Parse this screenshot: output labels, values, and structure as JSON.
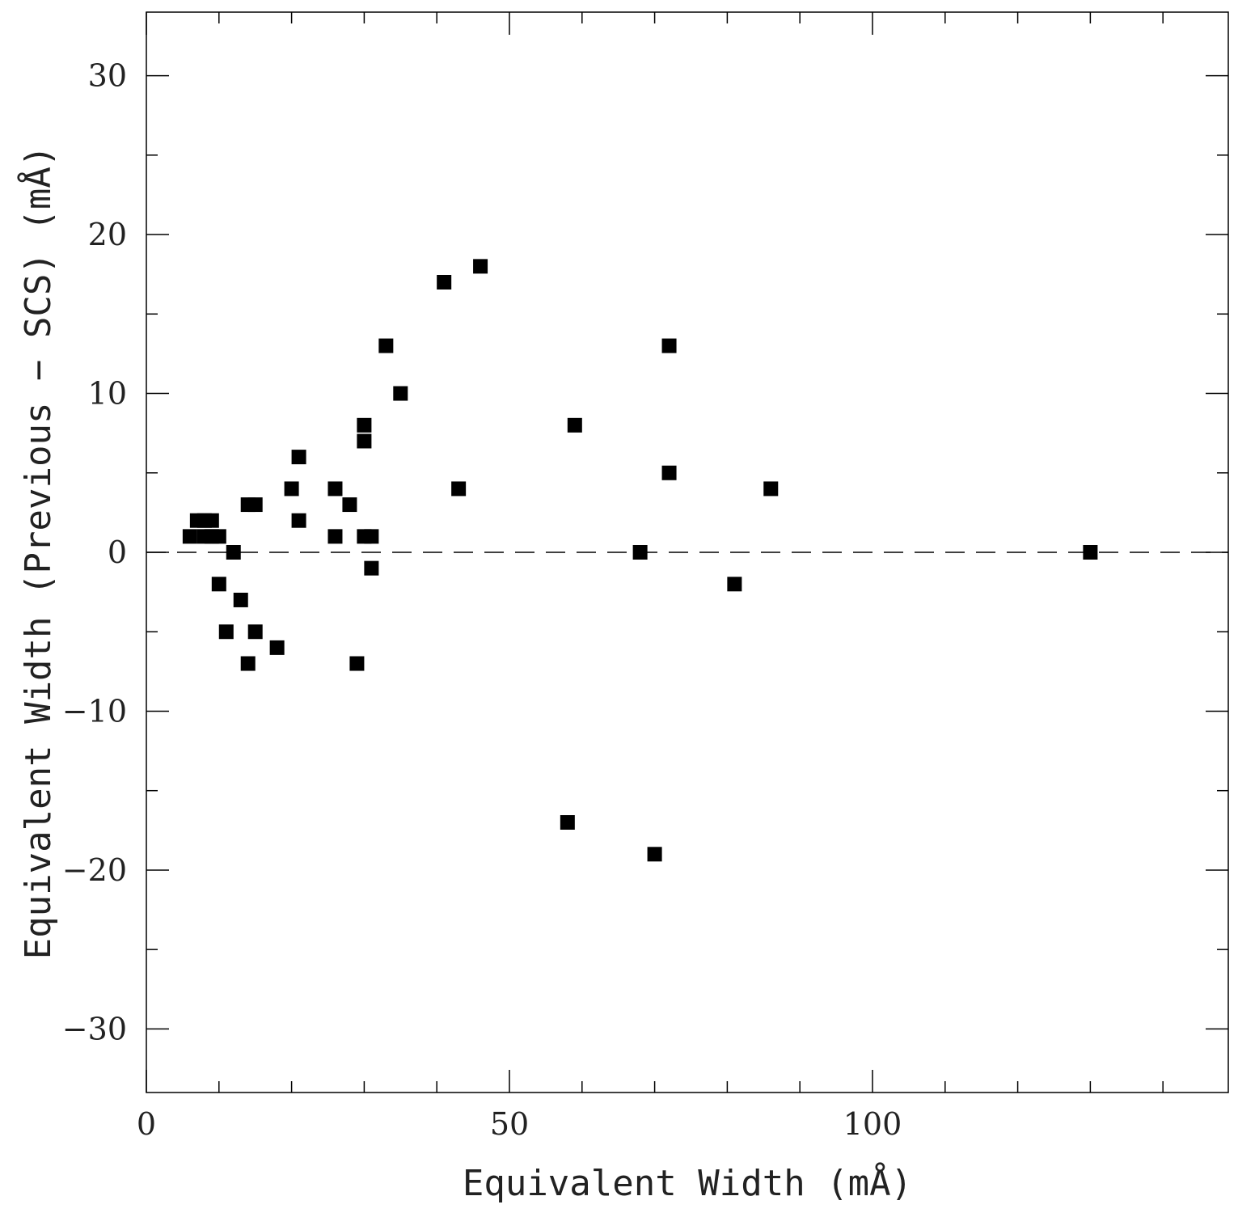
{
  "chart_data": {
    "type": "scatter",
    "title": "",
    "xlabel": "Equivalent Width (mÅ)",
    "ylabel": "Equivalent Width (Previous − SCS) (mÅ)",
    "xlim": [
      0,
      149
    ],
    "ylim": [
      -34,
      34
    ],
    "x_ticks": [
      {
        "value": 0,
        "label": "0"
      },
      {
        "value": 50,
        "label": "50"
      },
      {
        "value": 100,
        "label": "100"
      }
    ],
    "y_ticks": [
      {
        "value": 30,
        "label": "30"
      },
      {
        "value": 20,
        "label": "20"
      },
      {
        "value": 10,
        "label": "10"
      },
      {
        "value": 0,
        "label": "0"
      },
      {
        "value": -10,
        "label": "−10"
      },
      {
        "value": -20,
        "label": "−20"
      },
      {
        "value": -30,
        "label": "−30"
      }
    ],
    "x_minor_step": 10,
    "y_minor_step": 5,
    "reference_line": {
      "y": 0,
      "style": "dashed"
    },
    "marker": {
      "shape": "square",
      "color": "#000000"
    },
    "grid": false,
    "points": [
      {
        "x": 6,
        "y": 1
      },
      {
        "x": 7,
        "y": 2
      },
      {
        "x": 8,
        "y": 2
      },
      {
        "x": 8,
        "y": 1
      },
      {
        "x": 9,
        "y": 2
      },
      {
        "x": 9,
        "y": 1
      },
      {
        "x": 10,
        "y": 1
      },
      {
        "x": 10,
        "y": -2
      },
      {
        "x": 11,
        "y": -5
      },
      {
        "x": 12,
        "y": 0
      },
      {
        "x": 13,
        "y": -3
      },
      {
        "x": 14,
        "y": 3
      },
      {
        "x": 14,
        "y": -7
      },
      {
        "x": 15,
        "y": 3
      },
      {
        "x": 15,
        "y": -5
      },
      {
        "x": 18,
        "y": -6
      },
      {
        "x": 20,
        "y": 4
      },
      {
        "x": 21,
        "y": 6
      },
      {
        "x": 21,
        "y": 2
      },
      {
        "x": 26,
        "y": 4
      },
      {
        "x": 26,
        "y": 1
      },
      {
        "x": 28,
        "y": 3
      },
      {
        "x": 29,
        "y": -7
      },
      {
        "x": 30,
        "y": 8
      },
      {
        "x": 30,
        "y": 7
      },
      {
        "x": 30,
        "y": 1
      },
      {
        "x": 31,
        "y": 1
      },
      {
        "x": 31,
        "y": -1
      },
      {
        "x": 33,
        "y": 13
      },
      {
        "x": 35,
        "y": 10
      },
      {
        "x": 41,
        "y": 17
      },
      {
        "x": 43,
        "y": 4
      },
      {
        "x": 46,
        "y": 18
      },
      {
        "x": 58,
        "y": -17
      },
      {
        "x": 59,
        "y": 8
      },
      {
        "x": 68,
        "y": 0
      },
      {
        "x": 70,
        "y": -19
      },
      {
        "x": 72,
        "y": 13
      },
      {
        "x": 72,
        "y": 5
      },
      {
        "x": 81,
        "y": -2
      },
      {
        "x": 86,
        "y": 4
      },
      {
        "x": 130,
        "y": 0
      }
    ]
  }
}
